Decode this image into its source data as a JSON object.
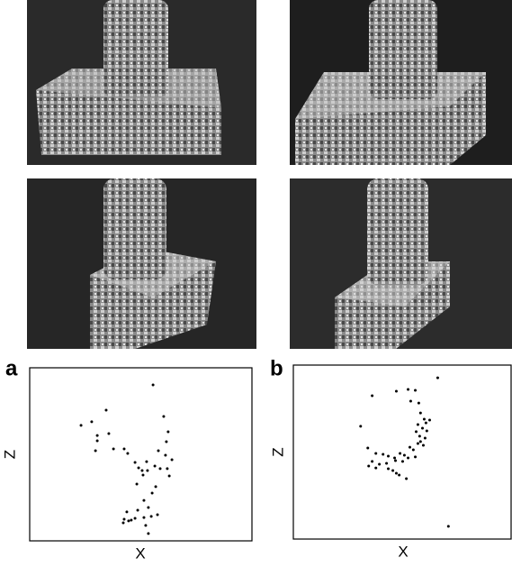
{
  "chart_data": [
    {
      "type": "scatter",
      "label": "a",
      "xlabel": "X",
      "ylabel": "Z",
      "color": "#000000",
      "xlim": [
        0,
        100
      ],
      "ylim": [
        0,
        100
      ],
      "x": [
        55.5,
        60.3,
        34.4,
        27.9,
        23.1,
        30.4,
        30.4,
        35.6,
        62.3,
        61.5,
        37.7,
        29.6,
        42.5,
        44.1,
        57.9,
        61.1,
        64.0,
        47.4,
        52.6,
        49.0,
        50.6,
        58.7,
        61.9,
        53.0,
        56.3,
        51.0,
        62.8,
        48.2,
        56.7,
        55.1,
        51.4,
        53.4,
        48.6,
        43.7,
        42.5,
        45.7,
        47.4,
        42.1,
        44.5,
        51.4,
        54.7,
        57.5,
        52.2,
        53.4
      ],
      "y": [
        90.1,
        71.9,
        75.5,
        68.8,
        66.7,
        60.9,
        57.8,
        62.0,
        63.0,
        57.3,
        53.1,
        52.1,
        53.1,
        50.5,
        52.1,
        49.5,
        46.9,
        45.3,
        45.8,
        42.2,
        40.6,
        41.7,
        41.7,
        40.6,
        43.2,
        38.0,
        37.5,
        32.8,
        31.3,
        27.6,
        23.4,
        19.3,
        17.7,
        16.7,
        12.5,
        12.0,
        13.0,
        10.4,
        11.5,
        13.5,
        14.1,
        15.1,
        8.9,
        4.2
      ]
    },
    {
      "type": "scatter",
      "label": "b",
      "xlabel": "X",
      "ylabel": "Z",
      "color": "#000000",
      "xlim": [
        0,
        100
      ],
      "ylim": [
        0,
        100
      ],
      "x": [
        66.3,
        52.7,
        56.0,
        47.3,
        36.2,
        53.9,
        57.6,
        58.4,
        60.1,
        62.6,
        60.9,
        30.9,
        57.2,
        59.3,
        56.4,
        61.3,
        58.0,
        60.5,
        58.4,
        57.2,
        59.7,
        53.5,
        55.1,
        34.2,
        37.9,
        41.2,
        43.6,
        49.0,
        51.0,
        46.5,
        36.2,
        39.5,
        42.8,
        46.9,
        50.2,
        52.7,
        56.0,
        34.6,
        37.9,
        43.6,
        45.7,
        47.3,
        51.9,
        48.6,
        71.2
      ],
      "y": [
        92.7,
        86.0,
        85.5,
        85.0,
        82.4,
        79.3,
        78.2,
        72.5,
        68.9,
        68.4,
        66.8,
        64.8,
        65.8,
        63.7,
        61.7,
        62.2,
        59.1,
        58.0,
        56.0,
        54.9,
        53.9,
        52.8,
        51.3,
        52.3,
        49.2,
        48.7,
        47.7,
        49.2,
        48.2,
        46.6,
        44.6,
        43.0,
        43.5,
        45.1,
        44.6,
        46.6,
        47.2,
        42.0,
        40.9,
        40.4,
        39.4,
        37.8,
        34.7,
        36.8,
        7.3
      ]
    }
  ]
}
